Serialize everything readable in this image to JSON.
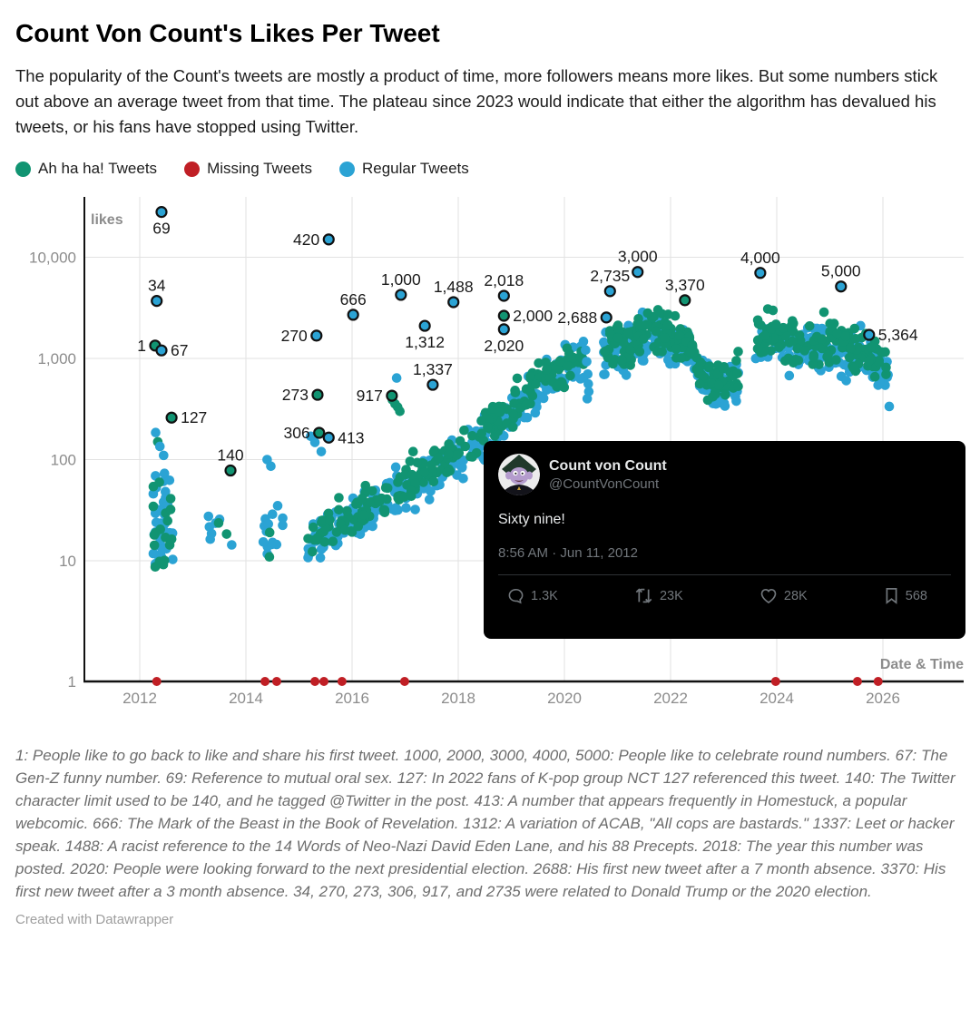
{
  "header": {
    "title": "Count Von Count's Likes Per Tweet",
    "description": "The popularity of the Count's tweets are mostly a product of time, more followers means more likes. But some numbers stick out above an average tweet from that time. The plateau since 2023 would indicate that either the algorithm has devalued his tweets, or his fans have stopped using Twitter."
  },
  "legend": [
    {
      "label": "Ah ha ha! Tweets",
      "color": "#119472"
    },
    {
      "label": "Missing Tweets",
      "color": "#c01f25"
    },
    {
      "label": "Regular Tweets",
      "color": "#2ba3d4"
    }
  ],
  "chart_data": {
    "type": "scatter",
    "palette": {
      "green": "#119472",
      "blue": "#2ba3d4",
      "red": "#c01f25",
      "grid": "#e2e2e2",
      "axis": "#111111",
      "tick_text": "#8c8c8c",
      "annotation_text": "#191919"
    },
    "x_axis": {
      "title": "Date & Time",
      "ticks": [
        2012,
        2014,
        2016,
        2018,
        2020,
        2022,
        2024,
        2026
      ],
      "range": [
        2010.95,
        2027.5
      ]
    },
    "y_axis": {
      "title": "likes",
      "scale": "log",
      "ticks": [
        {
          "label": "10,000",
          "value": 10000
        },
        {
          "label": "1,000",
          "value": 1000
        },
        {
          "label": "100",
          "value": 100
        },
        {
          "label": "10",
          "value": 10
        },
        {
          "label": "1",
          "value": 1
        }
      ]
    },
    "series_legend": [
      "Ah ha ha! Tweets",
      "Missing Tweets",
      "Regular Tweets"
    ],
    "annotations": [
      {
        "label": "69",
        "date": 2012.41,
        "likes": 28000,
        "color": "blue",
        "side": "below"
      },
      {
        "label": "34",
        "date": 2012.32,
        "likes": 3700,
        "color": "blue",
        "side": "above"
      },
      {
        "label": "1",
        "date": 2012.29,
        "likes": 1340,
        "color": "green",
        "side": "left"
      },
      {
        "label": "67",
        "date": 2012.41,
        "likes": 1200,
        "color": "blue",
        "side": "right"
      },
      {
        "label": "127",
        "date": 2012.6,
        "likes": 260,
        "color": "green",
        "side": "right"
      },
      {
        "label": "140",
        "date": 2013.71,
        "likes": 78,
        "color": "green",
        "side": "above"
      },
      {
        "label": "270",
        "date": 2015.33,
        "likes": 1680,
        "color": "blue",
        "side": "left"
      },
      {
        "label": "273",
        "date": 2015.35,
        "likes": 437,
        "color": "green",
        "side": "left"
      },
      {
        "label": "306",
        "date": 2015.38,
        "likes": 184,
        "color": "green",
        "side": "left"
      },
      {
        "label": "413",
        "date": 2015.56,
        "likes": 165,
        "color": "blue",
        "side": "right"
      },
      {
        "label": "420",
        "date": 2015.56,
        "likes": 15000,
        "color": "blue",
        "side": "left"
      },
      {
        "label": "666",
        "date": 2016.02,
        "likes": 2700,
        "color": "blue",
        "side": "above"
      },
      {
        "label": "917",
        "date": 2016.75,
        "likes": 428,
        "color": "green",
        "side": "left"
      },
      {
        "label": "1,000",
        "date": 2016.92,
        "likes": 4250,
        "color": "blue",
        "side": "above"
      },
      {
        "label": "1,312",
        "date": 2017.37,
        "likes": 2100,
        "color": "blue",
        "side": "below"
      },
      {
        "label": "1,337",
        "date": 2017.52,
        "likes": 549,
        "color": "blue",
        "side": "above"
      },
      {
        "label": "1,488",
        "date": 2017.91,
        "likes": 3600,
        "color": "blue",
        "side": "above"
      },
      {
        "label": "2,018",
        "date": 2018.86,
        "likes": 4160,
        "color": "blue",
        "side": "above"
      },
      {
        "label": "2,000",
        "date": 2018.86,
        "likes": 2640,
        "color": "green",
        "side": "right"
      },
      {
        "label": "2,020",
        "date": 2018.86,
        "likes": 1940,
        "color": "blue",
        "side": "below"
      },
      {
        "label": "2,688",
        "date": 2020.79,
        "likes": 2540,
        "color": "blue",
        "side": "left"
      },
      {
        "label": "2,735",
        "date": 2020.86,
        "likes": 4620,
        "color": "blue",
        "side": "above"
      },
      {
        "label": "3,000",
        "date": 2021.38,
        "likes": 7150,
        "color": "blue",
        "side": "above"
      },
      {
        "label": "3,370",
        "date": 2022.27,
        "likes": 3760,
        "color": "green",
        "side": "above"
      },
      {
        "label": "4,000",
        "date": 2023.69,
        "likes": 7000,
        "color": "blue",
        "side": "above"
      },
      {
        "label": "5,000",
        "date": 2025.21,
        "likes": 5140,
        "color": "blue",
        "side": "above"
      },
      {
        "label": "5,364",
        "date": 2025.74,
        "likes": 1710,
        "color": "blue",
        "side": "right"
      }
    ],
    "missing_tweet_dates": [
      2012.32,
      2014.36,
      2014.58,
      2015.3,
      2015.47,
      2015.81,
      2016.99,
      2023.98,
      2025.52,
      2025.91
    ],
    "clusters": [
      {
        "anchors": [
          [
            2012.26,
            21
          ],
          [
            2012.63,
            21
          ]
        ],
        "sigma": 0.27,
        "n": 62,
        "blue": 0.68,
        "min_likes": 8.5,
        "bias": 0
      },
      {
        "anchors": [
          [
            2013.28,
            20
          ],
          [
            2013.78,
            24
          ]
        ],
        "sigma": 0.09,
        "n": 9,
        "blue": 0.75,
        "bias": 0
      },
      {
        "anchors": [
          [
            2014.32,
            16
          ],
          [
            2014.72,
            20
          ]
        ],
        "sigma": 0.13,
        "n": 16,
        "blue": 0.6,
        "bias": 0
      },
      {
        "anchors": [
          [
            2015.17,
            16
          ],
          [
            2015.6,
            20
          ],
          [
            2016.03,
            27
          ],
          [
            2016.37,
            34
          ],
          [
            2016.71,
            44
          ],
          [
            2017.05,
            56
          ],
          [
            2017.39,
            71
          ],
          [
            2017.74,
            94
          ],
          [
            2018.08,
            122
          ],
          [
            2018.42,
            166
          ],
          [
            2018.77,
            240
          ],
          [
            2019.11,
            342
          ],
          [
            2019.35,
            456
          ],
          [
            2019.59,
            610
          ],
          [
            2019.85,
            719
          ],
          [
            2020.1,
            860
          ],
          [
            2020.38,
            1000
          ]
        ],
        "sigma": 0.11,
        "n": 470,
        "blue": 0.53,
        "bias": 0.03
      },
      {
        "anchors": [
          [
            2020.74,
            1050
          ],
          [
            2020.95,
            1300
          ],
          [
            2021.2,
            1150
          ],
          [
            2021.4,
            1500
          ],
          [
            2021.63,
            1750
          ],
          [
            2021.89,
            1650
          ],
          [
            2022.06,
            1400
          ],
          [
            2022.23,
            1550
          ],
          [
            2022.4,
            1100
          ],
          [
            2022.6,
            700
          ],
          [
            2022.8,
            520
          ],
          [
            2023.05,
            540
          ],
          [
            2023.28,
            620
          ]
        ],
        "sigma": 0.105,
        "n": 330,
        "blue": 0.5,
        "bias": 0.035
      },
      {
        "anchors": [
          [
            2023.6,
            1850
          ],
          [
            2023.8,
            1700
          ],
          [
            2024.1,
            1500
          ],
          [
            2024.5,
            1400
          ],
          [
            2024.9,
            1350
          ],
          [
            2025.3,
            1200
          ],
          [
            2025.7,
            1050
          ],
          [
            2025.95,
            900
          ],
          [
            2026.12,
            700
          ]
        ],
        "sigma": 0.115,
        "n": 300,
        "blue": 0.5,
        "bias": 0.035
      }
    ],
    "extra_points": [
      {
        "date": 2012.3,
        "likes": 185,
        "color": "blue"
      },
      {
        "date": 2012.34,
        "likes": 150,
        "color": "green"
      },
      {
        "date": 2012.38,
        "likes": 135,
        "color": "blue"
      },
      {
        "date": 2012.45,
        "likes": 110,
        "color": "blue"
      },
      {
        "date": 2014.4,
        "likes": 100,
        "color": "blue"
      },
      {
        "date": 2014.47,
        "likes": 86,
        "color": "blue"
      },
      {
        "date": 2015.22,
        "likes": 170,
        "color": "blue"
      },
      {
        "date": 2015.3,
        "likes": 148,
        "color": "blue"
      },
      {
        "date": 2015.42,
        "likes": 120,
        "color": "blue"
      },
      {
        "date": 2016.76,
        "likes": 390,
        "color": "green"
      },
      {
        "date": 2016.81,
        "likes": 355,
        "color": "green"
      },
      {
        "date": 2016.86,
        "likes": 330,
        "color": "green"
      },
      {
        "date": 2016.84,
        "likes": 640,
        "color": "blue"
      },
      {
        "date": 2016.9,
        "likes": 300,
        "color": "green"
      },
      {
        "date": 2019.3,
        "likes": 260,
        "color": "blue"
      },
      {
        "date": 2019.45,
        "likes": 290,
        "color": "blue"
      },
      {
        "date": 2020.4,
        "likes": 1210,
        "color": "blue"
      },
      {
        "date": 2020.42,
        "likes": 930,
        "color": "blue"
      },
      {
        "date": 2020.44,
        "likes": 700,
        "color": "blue"
      },
      {
        "date": 2020.45,
        "likes": 560,
        "color": "blue"
      },
      {
        "date": 2020.46,
        "likes": 470,
        "color": "blue"
      },
      {
        "date": 2020.43,
        "likes": 400,
        "color": "blue"
      },
      {
        "date": 2026.12,
        "likes": 335,
        "color": "blue"
      }
    ]
  },
  "tweet_card": {
    "name": "Count von Count",
    "handle": "@CountVonCount",
    "text": "Sixty nine!",
    "timestamp": "8:56 AM · Jun 11, 2012",
    "stats": [
      {
        "icon": "reply",
        "value": "1.3K"
      },
      {
        "icon": "retweet",
        "value": "23K"
      },
      {
        "icon": "heart",
        "value": "28K"
      },
      {
        "icon": "bookmark",
        "value": "568"
      }
    ]
  },
  "footnote": "1: People like to go back to like and share his first tweet. 1000, 2000, 3000, 4000, 5000: People like to celebrate round numbers. 67: The Gen-Z funny number. 69: Reference to mutual oral sex. 127: In 2022 fans of K-pop group NCT 127 referenced this tweet. 140: The Twitter character limit used to be 140, and he tagged @Twitter in the post. 413: A number that appears frequently in Homestuck, a popular webcomic. 666: The Mark of the Beast in the Book of Revelation. 1312: A variation of ACAB, \"All cops are bastards.\" 1337: Leet or hacker speak. 1488: A racist reference to the 14 Words of Neo-Nazi David Eden Lane, and his 88 Precepts. 2018: The year this number was posted. 2020: People were looking forward to the next presidential election. 2688: His first new tweet after a 7 month absence. 3370: His first new tweet after a 3 month absence. 34, 270, 273, 306, 917, and 2735 were related to Donald Trump or the 2020 election.",
  "credit": "Created with Datawrapper"
}
